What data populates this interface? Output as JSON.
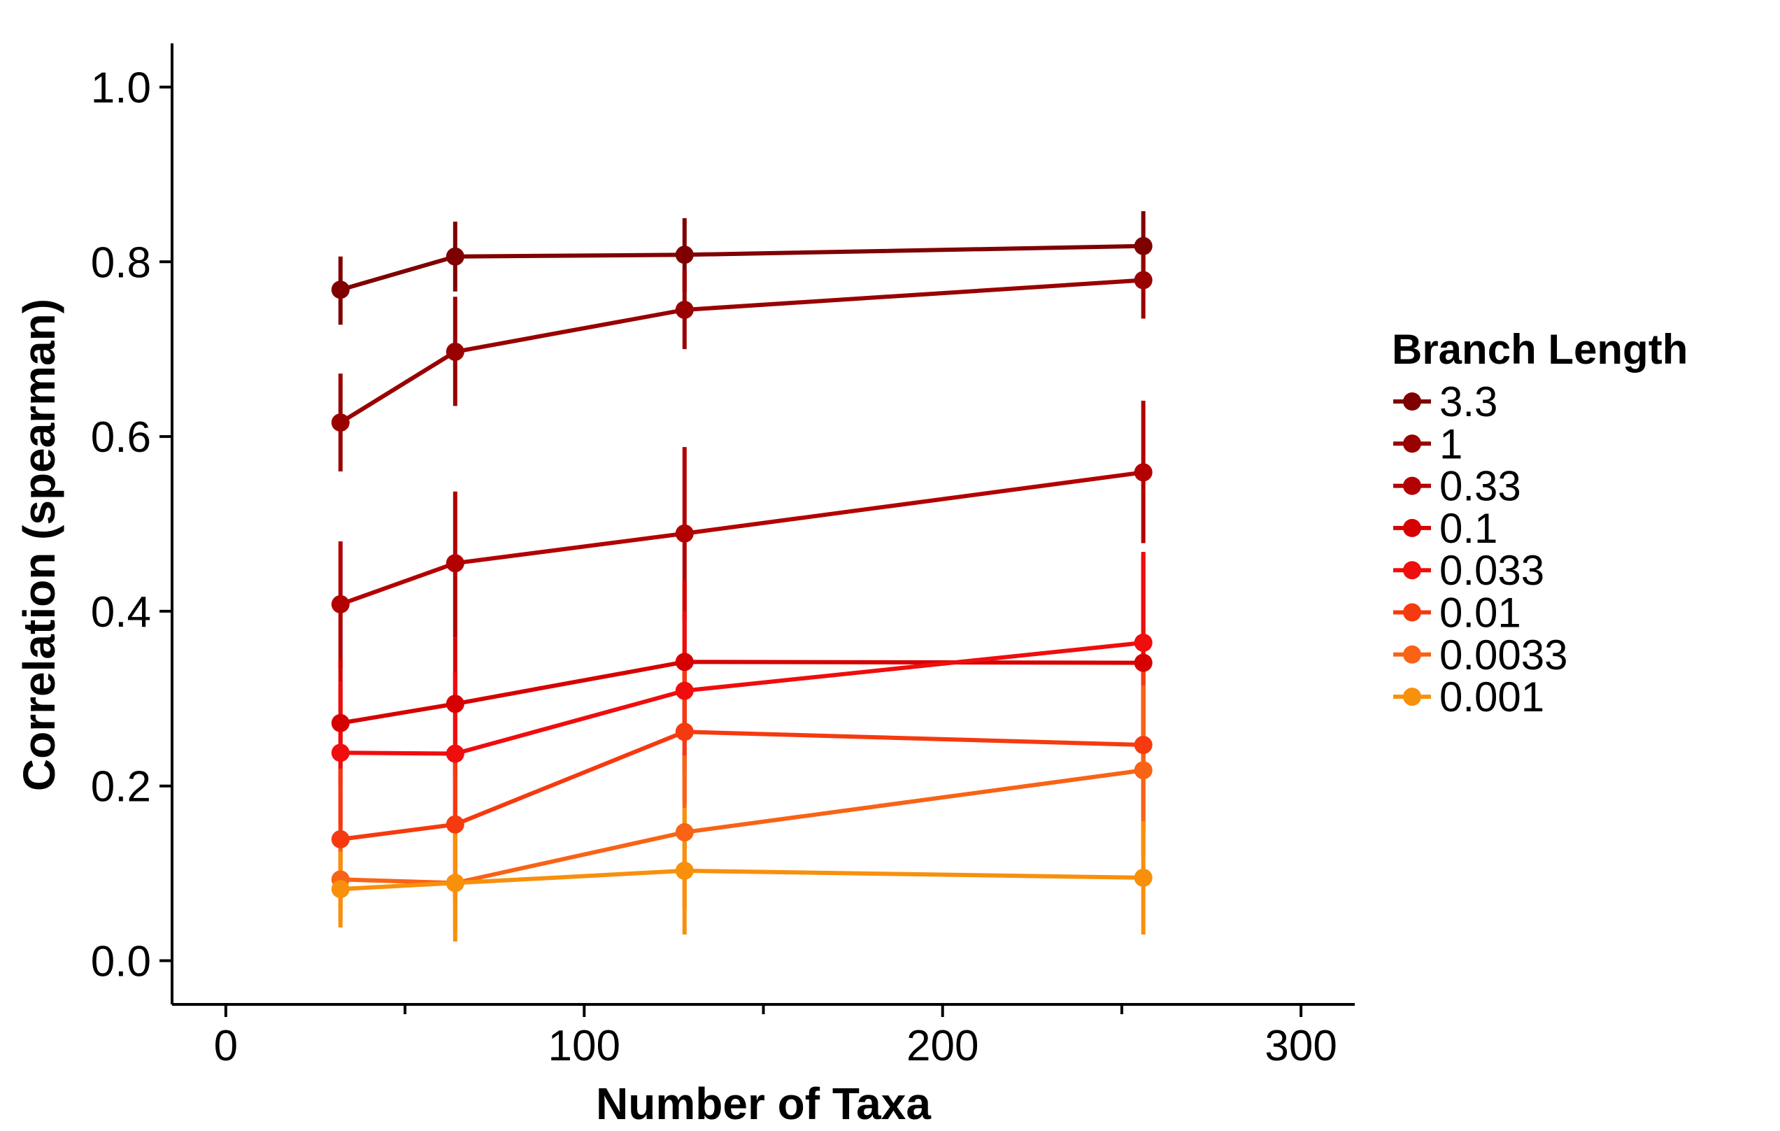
{
  "chart_data": {
    "type": "line",
    "xlabel": "Number of Taxa",
    "ylabel": "Correlation (spearman)",
    "xlim": [
      -15,
      315
    ],
    "ylim": [
      -0.05,
      1.05
    ],
    "x_ticks": [
      0,
      100,
      200,
      300
    ],
    "x_tick_labels": [
      "0",
      "100",
      "200",
      "300"
    ],
    "x_minor_ticks": [
      50,
      150,
      250
    ],
    "y_ticks": [
      0.0,
      0.2,
      0.4,
      0.6,
      0.8,
      1.0
    ],
    "y_tick_labels": [
      "0.0",
      "0.2",
      "0.4",
      "0.6",
      "0.8",
      "1.0"
    ],
    "grid": false,
    "legend_placement": "right",
    "legend_title": "Branch Length",
    "x": [
      32,
      64,
      128,
      256
    ],
    "series": [
      {
        "name": "3.3",
        "color": "#7f0000",
        "values": [
          0.768,
          0.806,
          0.808,
          0.818
        ],
        "err_low": [
          0.728,
          0.766,
          0.766,
          0.778
        ],
        "err_high": [
          0.806,
          0.846,
          0.85,
          0.858
        ]
      },
      {
        "name": "1",
        "color": "#990000",
        "values": [
          0.616,
          0.697,
          0.745,
          0.779
        ],
        "err_low": [
          0.56,
          0.635,
          0.7,
          0.735
        ],
        "err_high": [
          0.672,
          0.76,
          0.79,
          0.822
        ]
      },
      {
        "name": "0.33",
        "color": "#b30000",
        "values": [
          0.408,
          0.455,
          0.489,
          0.559
        ],
        "err_low": [
          0.335,
          0.37,
          0.39,
          0.478
        ],
        "err_high": [
          0.48,
          0.537,
          0.588,
          0.641
        ]
      },
      {
        "name": "0.1",
        "color": "#d60000",
        "values": [
          0.272,
          0.294,
          0.342,
          0.341
        ],
        "err_low": [
          0.2,
          0.21,
          0.25,
          0.215
        ],
        "err_high": [
          0.345,
          0.37,
          0.435,
          0.465
        ]
      },
      {
        "name": "0.033",
        "color": "#ef0d0d",
        "values": [
          0.238,
          0.237,
          0.309,
          0.364
        ],
        "err_low": [
          0.155,
          0.145,
          0.215,
          0.26
        ],
        "err_high": [
          0.32,
          0.33,
          0.4,
          0.468
        ]
      },
      {
        "name": "0.01",
        "color": "#f53a10",
        "values": [
          0.139,
          0.156,
          0.262,
          0.247
        ],
        "err_low": [
          0.06,
          0.07,
          0.18,
          0.148
        ],
        "err_high": [
          0.22,
          0.24,
          0.345,
          0.345
        ]
      },
      {
        "name": "0.0033",
        "color": "#f86315",
        "values": [
          0.093,
          0.089,
          0.147,
          0.218
        ],
        "err_low": [
          0.045,
          0.035,
          0.06,
          0.12
        ],
        "err_high": [
          0.14,
          0.145,
          0.235,
          0.315
        ]
      },
      {
        "name": "0.001",
        "color": "#f8900c",
        "values": [
          0.082,
          0.089,
          0.103,
          0.095
        ],
        "err_low": [
          0.038,
          0.022,
          0.03,
          0.03
        ],
        "err_high": [
          0.125,
          0.155,
          0.175,
          0.16
        ]
      }
    ]
  }
}
